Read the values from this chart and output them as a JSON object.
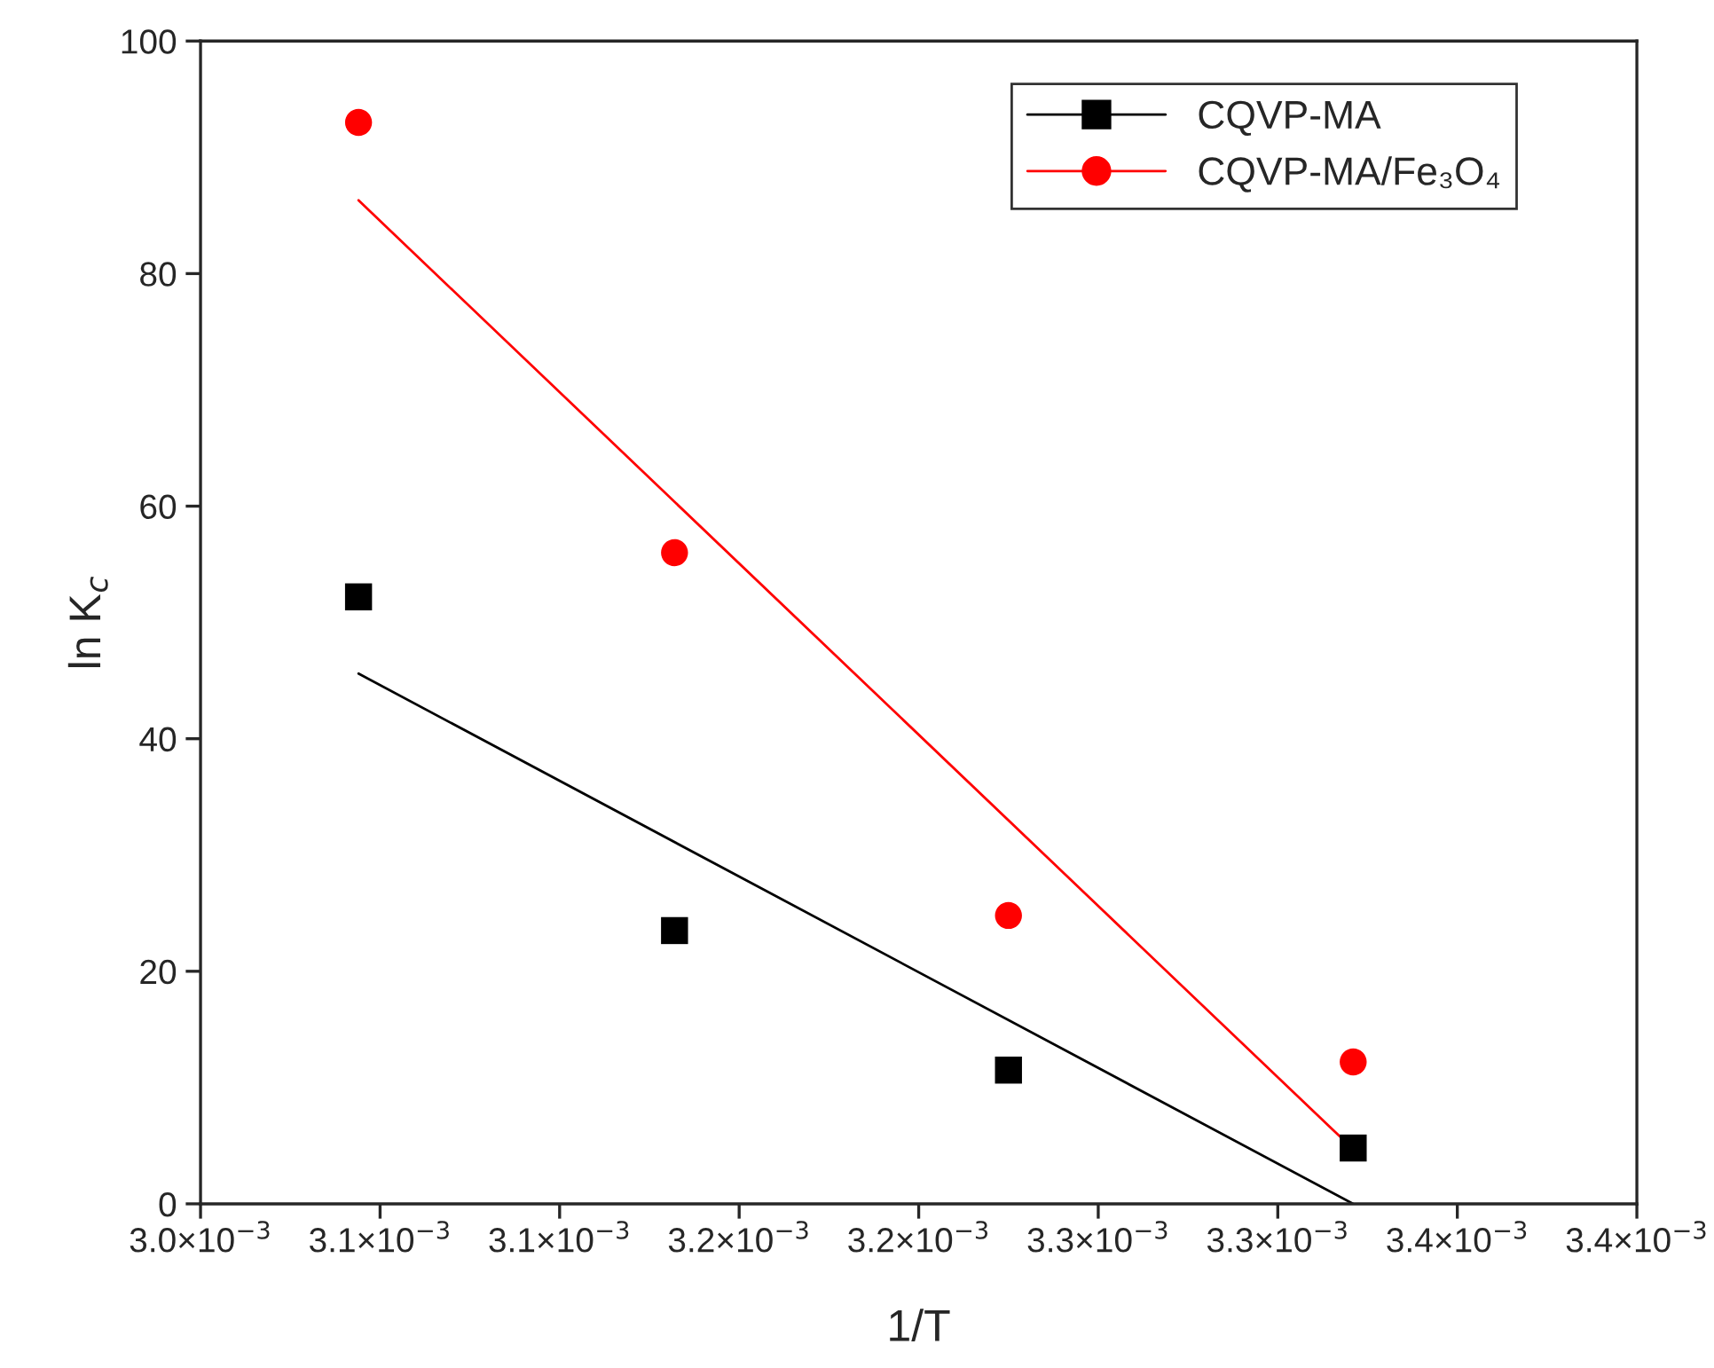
{
  "chart_data": {
    "type": "scatter",
    "xlabel": "1/T",
    "ylabel": "ln K$_{c}$",
    "xlim": [
      0.003,
      0.0034
    ],
    "xticks": [
      {
        "value": 0.003,
        "label": "3.0×10$^{−3}$"
      },
      {
        "value": 0.00305,
        "label": "3.1×10$^{−3}$"
      },
      {
        "value": 0.0031,
        "label": "3.1×10$^{−3}$"
      },
      {
        "value": 0.00315,
        "label": "3.2×10$^{−3}$"
      },
      {
        "value": 0.0032,
        "label": "3.2×10$^{−3}$"
      },
      {
        "value": 0.00325,
        "label": "3.3×10$^{−3}$"
      },
      {
        "value": 0.0033,
        "label": "3.3×10$^{−3}$"
      },
      {
        "value": 0.00335,
        "label": "3.4×10$^{−3}$"
      },
      {
        "value": 0.0034,
        "label": "3.4×10$^{−3}$"
      }
    ],
    "ylim": [
      0,
      100
    ],
    "yticks": [
      0,
      20,
      40,
      60,
      80,
      100
    ],
    "legend": "top right",
    "grid": false,
    "series": [
      {
        "name": "CQVP-MA",
        "marker": "square",
        "color": "#000000",
        "x": [
          0.003044,
          0.003132,
          0.003225,
          0.003321
        ],
        "values": [
          52.2,
          23.5,
          11.5,
          4.8
        ]
      },
      {
        "name": "CQVP-MA/Fe₃O₄",
        "marker": "circle",
        "color": "#ff0000",
        "x": [
          0.003044,
          0.003132,
          0.003225,
          0.003321
        ],
        "values": [
          93,
          56,
          24.8,
          12.2
        ]
      },
      {
        "type": "line",
        "color": "#000000",
        "x": [
          0.003044,
          0.003321
        ],
        "values": [
          45.6,
          0
        ]
      },
      {
        "type": "line",
        "color": "#ff0000",
        "x": [
          0.003044,
          0.003321
        ],
        "values": [
          86.3,
          4.7
        ]
      }
    ]
  }
}
